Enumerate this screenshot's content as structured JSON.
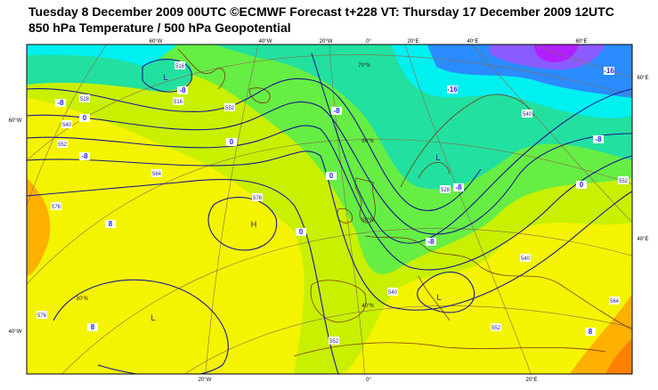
{
  "header": {
    "title": "Tuesday 8 December 2009 00UTC ©ECMWF Forecast t+228 VT: Thursday 17 December 2009 12UTC",
    "subtitle": "850 hPa Temperature / 500 hPa Geopotential"
  },
  "map": {
    "lon_labels_top": [
      "60°W",
      "40°W",
      "20°W",
      "0°",
      "20°E",
      "40°E",
      "60°E"
    ],
    "lon_labels_bottom": [
      "20°W",
      "0°",
      "20°E"
    ],
    "edge_labels_left": [
      "60°W",
      "40°W"
    ],
    "edge_labels_right": [
      "60°E",
      "40°E"
    ],
    "lat_labels": [
      "70°N",
      "60°N",
      "50°N",
      "40°N",
      "30°N"
    ],
    "pressure_centers": [
      "L",
      "L",
      "H",
      "L",
      "L"
    ],
    "geopotential_labels": [
      "516",
      "516",
      "528",
      "540",
      "552",
      "564",
      "576",
      "576",
      "576",
      "552",
      "528",
      "540",
      "552",
      "540",
      "552",
      "564",
      "540",
      "552"
    ],
    "temperature_labels": [
      "-8",
      "0",
      "-8",
      "-8",
      "0",
      "-8",
      "0",
      "0",
      "8",
      "8",
      "-16",
      "-16",
      "-8",
      "0",
      "-8",
      "-8",
      "8"
    ]
  }
}
